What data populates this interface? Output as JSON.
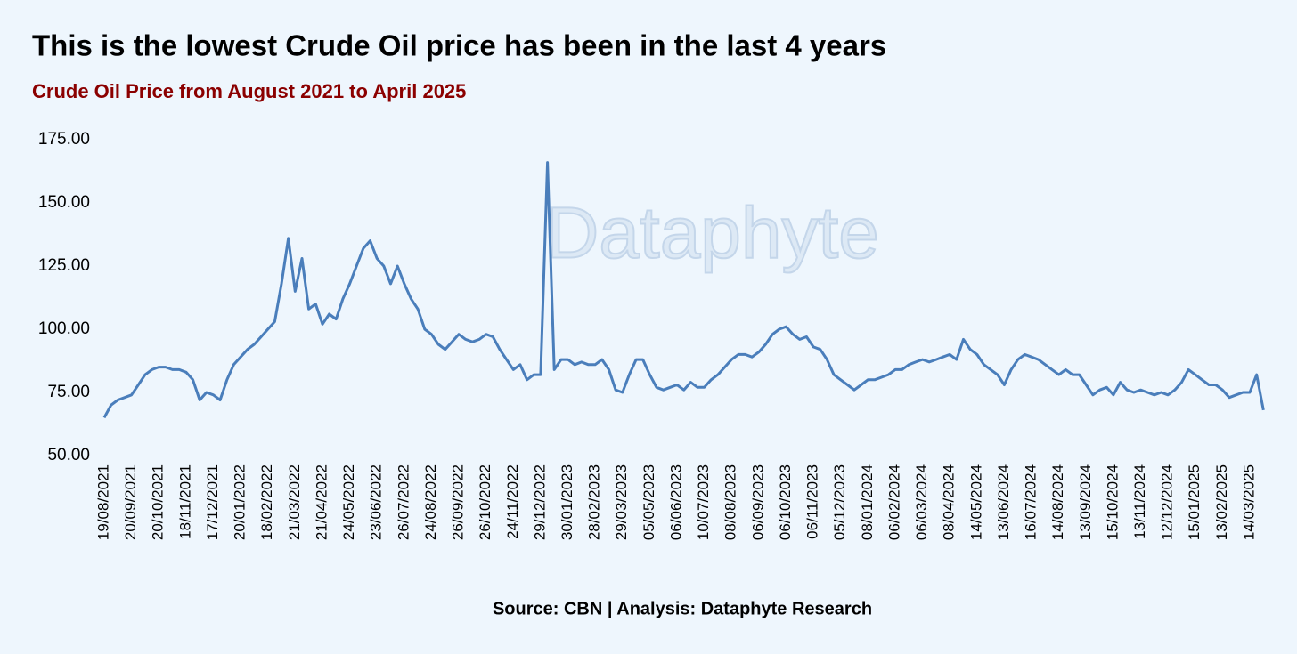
{
  "chart_data": {
    "type": "line",
    "title": "This is the lowest Crude Oil price has been in the last 4 years",
    "subtitle": "Crude Oil Price from August 2021 to April 2025",
    "watermark": "Dataphyte",
    "source": "Source: CBN | Analysis: Dataphyte Research",
    "categories": [
      "19/08/2021",
      null,
      null,
      null,
      "20/09/2021",
      null,
      null,
      null,
      "20/10/2021",
      null,
      null,
      null,
      "18/11/2021",
      null,
      null,
      null,
      "17/12/2021",
      null,
      null,
      null,
      "20/01/2022",
      null,
      null,
      null,
      "18/02/2022",
      null,
      null,
      null,
      "21/03/2022",
      null,
      null,
      null,
      "21/04/2022",
      null,
      null,
      null,
      "24/05/2022",
      null,
      null,
      null,
      "23/06/2022",
      null,
      null,
      null,
      "26/07/2022",
      null,
      null,
      null,
      "24/08/2022",
      null,
      null,
      null,
      "26/09/2022",
      null,
      null,
      null,
      "26/10/2022",
      null,
      null,
      null,
      "24/11/2022",
      null,
      null,
      null,
      "29/12/2022",
      null,
      null,
      null,
      "30/01/2023",
      null,
      null,
      null,
      "28/02/2023",
      null,
      null,
      null,
      "29/03/2023",
      null,
      null,
      null,
      "05/05/2023",
      null,
      null,
      null,
      "06/06/2023",
      null,
      null,
      null,
      "10/07/2023",
      null,
      null,
      null,
      "08/08/2023",
      null,
      null,
      null,
      "06/09/2023",
      null,
      null,
      null,
      "06/10/2023",
      null,
      null,
      null,
      "06/11/2023",
      null,
      null,
      null,
      "05/12/2023",
      null,
      null,
      null,
      "08/01/2024",
      null,
      null,
      null,
      "06/02/2024",
      null,
      null,
      null,
      "06/03/2024",
      null,
      null,
      null,
      "08/04/2024",
      null,
      null,
      null,
      "14/05/2024",
      null,
      null,
      null,
      "13/06/2024",
      null,
      null,
      null,
      "16/07/2024",
      null,
      null,
      null,
      "14/08/2024",
      null,
      null,
      null,
      "13/09/2024",
      null,
      null,
      null,
      "15/10/2024",
      null,
      null,
      null,
      "13/11/2024",
      null,
      null,
      null,
      "12/12/2024",
      null,
      null,
      null,
      "15/01/2025",
      null,
      null,
      null,
      "13/02/2025",
      null,
      null,
      null,
      "14/03/2025",
      null,
      null
    ],
    "series": [
      {
        "name": "Crude Oil Price",
        "color": "#4a7ebb",
        "values": [
          65,
          70,
          72,
          73,
          74,
          78,
          82,
          84,
          85,
          85,
          84,
          84,
          83,
          80,
          72,
          75,
          74,
          72,
          80,
          86,
          89,
          92,
          94,
          97,
          100,
          103,
          118,
          136,
          115,
          128,
          108,
          110,
          102,
          106,
          104,
          112,
          118,
          125,
          132,
          135,
          128,
          125,
          118,
          125,
          118,
          112,
          108,
          100,
          98,
          94,
          92,
          95,
          98,
          96,
          95,
          96,
          98,
          97,
          92,
          88,
          84,
          86,
          80,
          82,
          82,
          166,
          84,
          88,
          88,
          86,
          87,
          86,
          86,
          88,
          84,
          76,
          75,
          82,
          88,
          88,
          82,
          77,
          76,
          77,
          78,
          76,
          79,
          77,
          77,
          80,
          82,
          85,
          88,
          90,
          90,
          89,
          91,
          94,
          98,
          100,
          101,
          98,
          96,
          97,
          93,
          92,
          88,
          82,
          80,
          78,
          76,
          78,
          80,
          80,
          81,
          82,
          84,
          84,
          86,
          87,
          88,
          87,
          88,
          89,
          90,
          88,
          96,
          92,
          90,
          86,
          84,
          82,
          78,
          84,
          88,
          90,
          89,
          88,
          86,
          84,
          82,
          84,
          82,
          82,
          78,
          74,
          76,
          77,
          74,
          79,
          76,
          75,
          76,
          75,
          74,
          75,
          74,
          76,
          79,
          84,
          82,
          80,
          78,
          78,
          76,
          73,
          74,
          75,
          75,
          82,
          68
        ]
      }
    ],
    "ylim": [
      50,
      175
    ],
    "yticks": [
      {
        "value": 50,
        "label": "50.00"
      },
      {
        "value": 75,
        "label": "75.00"
      },
      {
        "value": 100,
        "label": "100.00"
      },
      {
        "value": 125,
        "label": "125.00"
      },
      {
        "value": 150,
        "label": "150.00"
      },
      {
        "value": 175,
        "label": "175.00"
      }
    ],
    "grid": false
  }
}
